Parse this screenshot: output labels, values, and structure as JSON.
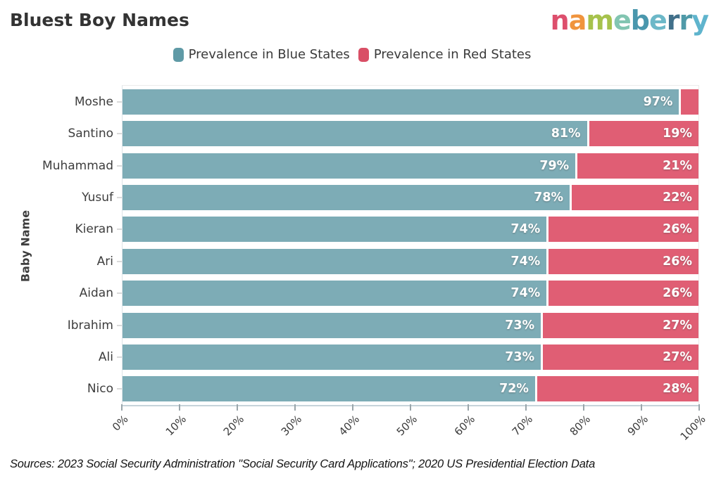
{
  "header": {
    "title": "Bluest Boy Names",
    "logo": {
      "name": "nameberry",
      "letters": [
        {
          "ch": "n",
          "color": "#dd4f6d"
        },
        {
          "ch": "a",
          "color": "#f0943d"
        },
        {
          "ch": "m",
          "color": "#a6c24c"
        },
        {
          "ch": "e",
          "color": "#82c5b1"
        },
        {
          "ch": "b",
          "color": "#4a97ad"
        },
        {
          "ch": "e",
          "color": "#6cb8c8"
        },
        {
          "ch": "r",
          "color": "#41708a"
        },
        {
          "ch": "r",
          "color": "#4f9aa8"
        },
        {
          "ch": "y",
          "color": "#5fb4cd"
        }
      ]
    }
  },
  "legend": [
    {
      "label": "Prevalence in Blue States",
      "color": "#5f9aa6"
    },
    {
      "label": "Prevalence in Red States",
      "color": "#d94f66"
    }
  ],
  "chart_data": {
    "type": "bar",
    "orientation": "horizontal",
    "stacked": true,
    "title": "Bluest Boy Names",
    "xlabel": "",
    "ylabel": "Baby Name",
    "xlim": [
      0,
      100
    ],
    "grid": false,
    "legend_position": "top-center",
    "categories": [
      "Moshe",
      "Santino",
      "Muhammad",
      "Yusuf",
      "Kieran",
      "Ari",
      "Aidan",
      "Ibrahim",
      "Ali",
      "Nico"
    ],
    "series": [
      {
        "name": "Prevalence in Blue States",
        "color": "#7dacb6",
        "values": [
          97,
          81,
          79,
          78,
          74,
          74,
          74,
          73,
          73,
          72
        ],
        "labels": [
          "97%",
          "81%",
          "79%",
          "78%",
          "74%",
          "74%",
          "74%",
          "73%",
          "73%",
          "72%"
        ]
      },
      {
        "name": "Prevalence in Red States",
        "color": "#e05e74",
        "values": [
          3,
          19,
          21,
          22,
          26,
          26,
          26,
          27,
          27,
          28
        ],
        "labels": [
          "",
          "19%",
          "21%",
          "22%",
          "26%",
          "26%",
          "26%",
          "27%",
          "27%",
          "28%"
        ]
      }
    ],
    "x_ticks": [
      "0%",
      "10%",
      "20%",
      "30%",
      "40%",
      "50%",
      "60%",
      "70%",
      "80%",
      "90%",
      "100%"
    ]
  },
  "footer": {
    "source": "Sources: 2023 Social Security Administration \"Social Security Card Applications\"; 2020 US Presidential Election Data"
  }
}
